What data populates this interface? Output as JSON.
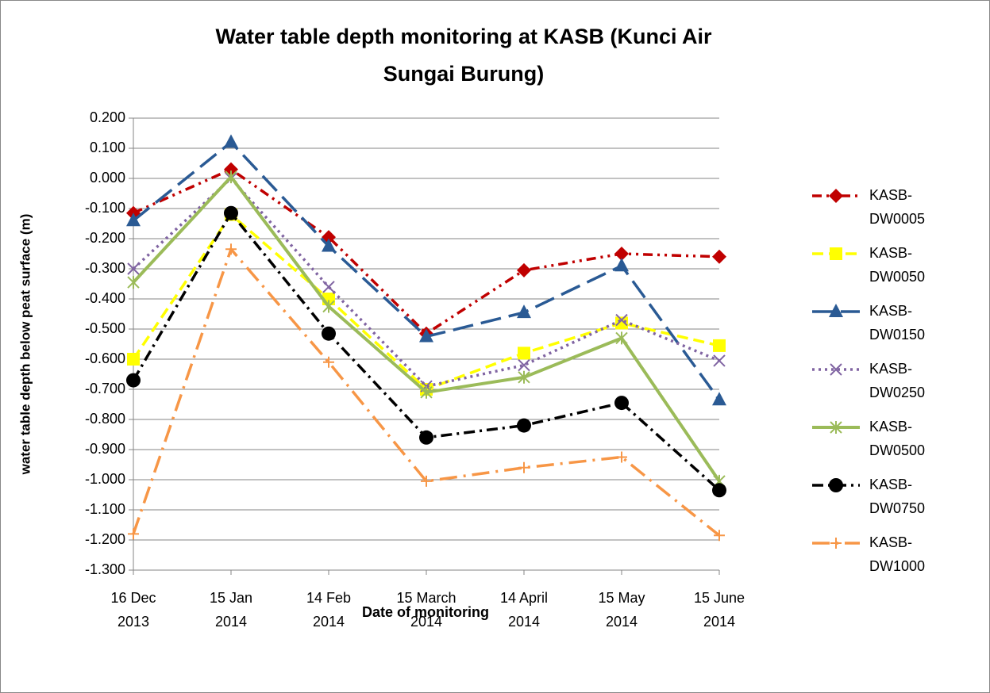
{
  "chart_data": {
    "type": "line",
    "title": "Water table depth monitoring at KASB (Kunci Air Sungai Burung)",
    "x_label": "Date of monitoring",
    "y_label": "water table depth below peat surface (m)",
    "categories": [
      "16 Dec 2013",
      "15 Jan 2014",
      "14 Feb 2014",
      "15 March 2014",
      "14 April 2014",
      "15 May 2014",
      "15 June 2014"
    ],
    "series": [
      {
        "name": "KASB-DW0005",
        "color": "#c00000",
        "marker": "diamond",
        "line_style": "dash-dot-dot",
        "values": [
          -0.115,
          0.03,
          -0.195,
          -0.515,
          -0.305,
          -0.25,
          -0.26
        ]
      },
      {
        "name": "KASB-DW0050",
        "color": "#ffff00",
        "marker": "square",
        "line_style": "dash",
        "values": [
          -0.6,
          -0.12,
          -0.4,
          -0.7,
          -0.58,
          -0.48,
          -0.555
        ]
      },
      {
        "name": "KASB-DW0150",
        "color": "#2a5a94",
        "marker": "triangle",
        "line_style": "long-dash",
        "values": [
          -0.14,
          0.12,
          -0.225,
          -0.525,
          -0.445,
          -0.29,
          -0.735
        ]
      },
      {
        "name": "KASB-DW0250",
        "color": "#8064a2",
        "marker": "x",
        "line_style": "dot",
        "values": [
          -0.3,
          0.0,
          -0.36,
          -0.69,
          -0.62,
          -0.47,
          -0.605
        ]
      },
      {
        "name": "KASB-DW0500",
        "color": "#9bbb59",
        "marker": "star",
        "line_style": "solid",
        "values": [
          -0.345,
          0.005,
          -0.425,
          -0.71,
          -0.66,
          -0.53,
          -1.005
        ]
      },
      {
        "name": "KASB-DW0750",
        "color": "#000000",
        "marker": "circle",
        "line_style": "dash-dot",
        "values": [
          -0.67,
          -0.115,
          -0.515,
          -0.86,
          -0.82,
          -0.745,
          -1.035
        ]
      },
      {
        "name": "KASB-DW1000",
        "color": "#f79646",
        "marker": "plus",
        "line_style": "long-dash-dot",
        "values": [
          -1.18,
          -0.235,
          -0.61,
          -1.005,
          -0.96,
          -0.925,
          -1.185
        ]
      }
    ],
    "ylim": [
      -1.3,
      0.2
    ],
    "yticks": [
      {
        "value": 0.2,
        "label": "0.200"
      },
      {
        "value": 0.1,
        "label": "0.100"
      },
      {
        "value": 0,
        "label": "0.000"
      },
      {
        "value": -0.1,
        "label": "-0.100"
      },
      {
        "value": -0.2,
        "label": "-0.200"
      },
      {
        "value": -0.3,
        "label": "-0.300"
      },
      {
        "value": -0.4,
        "label": "-0.400"
      },
      {
        "value": -0.5,
        "label": "-0.500"
      },
      {
        "value": -0.6,
        "label": "-0.600"
      },
      {
        "value": -0.7,
        "label": "-0.700"
      },
      {
        "value": -0.8,
        "label": "-0.800"
      },
      {
        "value": -0.9,
        "label": "-0.900"
      },
      {
        "value": -1.0,
        "label": "-1.000"
      },
      {
        "value": -1.1,
        "label": "-1.100"
      },
      {
        "value": -1.2,
        "label": "-1.200"
      },
      {
        "value": -1.3,
        "label": "-1.300"
      }
    ],
    "grid": true,
    "legend": "right"
  }
}
